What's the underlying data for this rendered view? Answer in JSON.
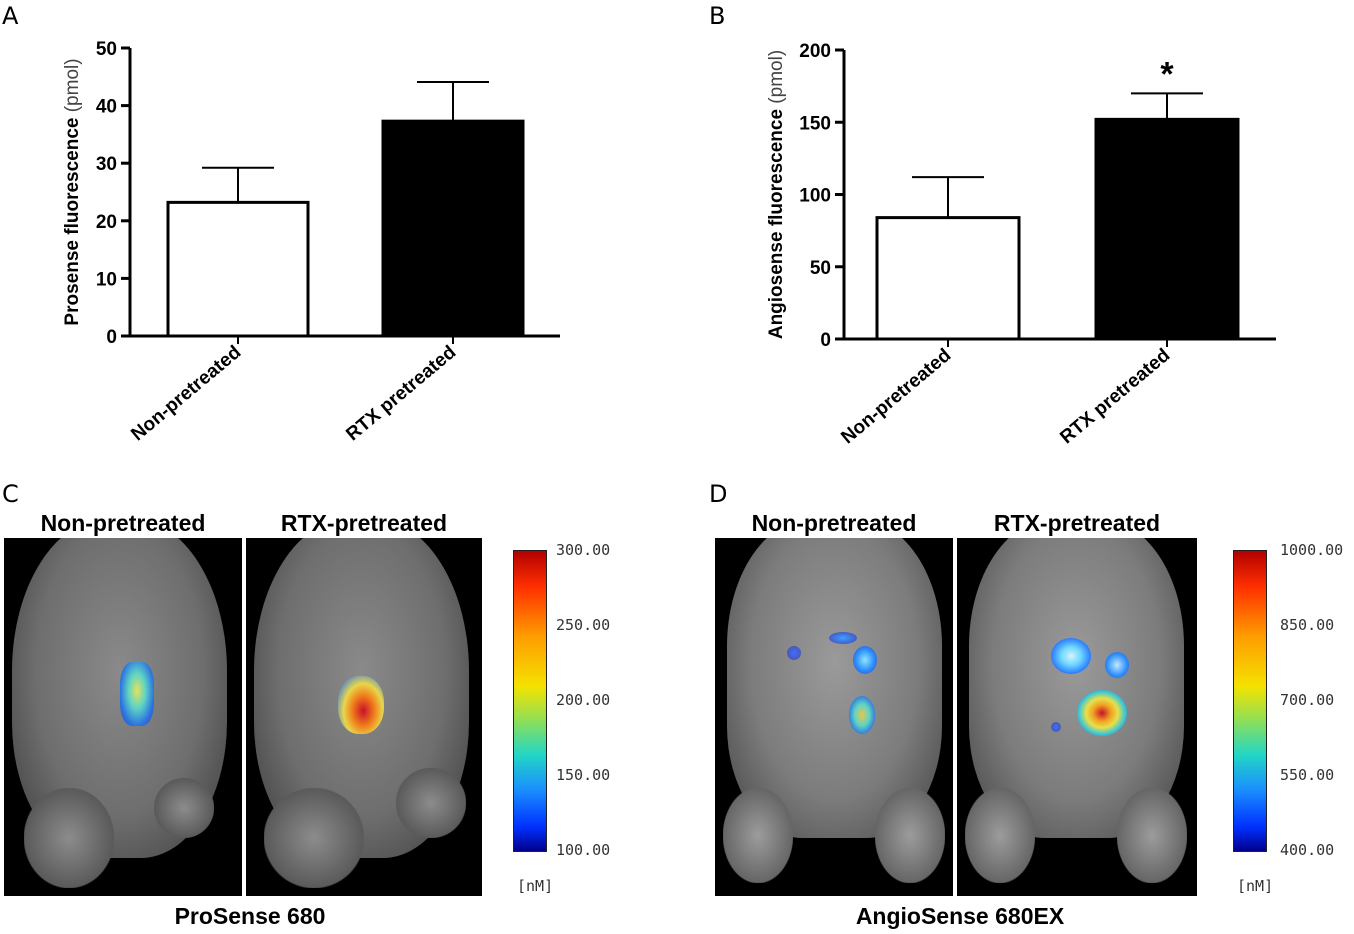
{
  "panels": {
    "a": {
      "letter": "A"
    },
    "b": {
      "letter": "B"
    },
    "c": {
      "letter": "C",
      "left_title": "Non-pretreated",
      "right_title": "RTX-pretreated",
      "caption": "ProSense 680",
      "scale_ticks": [
        "300.00",
        "250.00",
        "200.00",
        "150.00",
        "100.00"
      ],
      "unit": "[nM]"
    },
    "d": {
      "letter": "D",
      "left_title": "Non-pretreated",
      "right_title": "RTX-pretreated",
      "caption": "AngioSense 680EX",
      "scale_ticks": [
        "1000.00",
        "850.00",
        "700.00",
        "550.00",
        "400.00"
      ],
      "unit": "[nM]"
    }
  },
  "colors": {
    "white_bar": "#ffffff",
    "black_bar": "#000000",
    "scale_top": "#b30000",
    "scale_bottom": "#00008b"
  },
  "chart_data": [
    {
      "type": "bar",
      "categories": [
        "Non-pretreated",
        "RTX pretreated"
      ],
      "values": [
        23.2,
        37.3
      ],
      "errors": [
        6.0,
        6.8
      ],
      "bar_colors": [
        "#ffffff",
        "#000000"
      ],
      "ylabel_bold": "Prosense fluorescence",
      "ylabel_unit": "(pmol)",
      "ylim": [
        0,
        50
      ],
      "yticks": [
        0,
        10,
        20,
        30,
        40,
        50
      ],
      "annotations": [],
      "grid": false
    },
    {
      "type": "bar",
      "categories": [
        "Non-pretreated",
        "RTX pretreated"
      ],
      "values": [
        84,
        152
      ],
      "errors": [
        28,
        18
      ],
      "bar_colors": [
        "#ffffff",
        "#000000"
      ],
      "ylabel_bold": "Angiosense fluorescence",
      "ylabel_unit": "(pmol)",
      "ylim": [
        0,
        200
      ],
      "yticks": [
        0,
        50,
        100,
        150,
        200
      ],
      "annotations": [
        "",
        "*"
      ],
      "grid": false
    }
  ]
}
